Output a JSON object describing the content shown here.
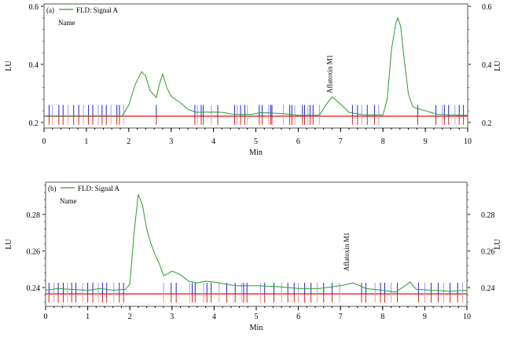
{
  "chart_data": [
    {
      "type": "line",
      "panel_label": "(a)",
      "legend": "FLD: Signal A",
      "legend_placement": "top-left",
      "name_label": "Name",
      "xlabel": "Min",
      "ylabel": "LU",
      "xlim": [
        0,
        10
      ],
      "ylim": [
        0.181,
        0.608
      ],
      "xticks": [
        0,
        1,
        2,
        3,
        4,
        5,
        6,
        7,
        8,
        9,
        10
      ],
      "yticks": [
        0.2,
        0.4,
        0.6
      ],
      "ytick_labels": [
        "0.2",
        "0.4",
        "0.6"
      ],
      "series_color": "#2e9a2e",
      "series": [
        {
          "name": "FLD: Signal A",
          "x": [
            0,
            0.5,
            1,
            1.5,
            1.85,
            2.0,
            2.15,
            2.3,
            2.4,
            2.5,
            2.65,
            2.72,
            2.8,
            2.9,
            3.0,
            3.2,
            3.4,
            3.6,
            4.0,
            4.2,
            4.5,
            4.9,
            5.1,
            5.3,
            5.6,
            6.0,
            6.5,
            6.65,
            6.8,
            6.95,
            7.2,
            7.5,
            8.0,
            8.1,
            8.2,
            8.3,
            8.35,
            8.42,
            8.5,
            8.6,
            8.7,
            8.8,
            8.9,
            9.1,
            9.3,
            9.6,
            10
          ],
          "y": [
            0.222,
            0.222,
            0.223,
            0.223,
            0.223,
            0.26,
            0.33,
            0.375,
            0.36,
            0.31,
            0.286,
            0.33,
            0.367,
            0.32,
            0.29,
            0.27,
            0.245,
            0.235,
            0.236,
            0.235,
            0.228,
            0.228,
            0.234,
            0.233,
            0.231,
            0.225,
            0.225,
            0.26,
            0.288,
            0.27,
            0.235,
            0.227,
            0.226,
            0.28,
            0.45,
            0.54,
            0.56,
            0.53,
            0.42,
            0.3,
            0.255,
            0.248,
            0.245,
            0.236,
            0.228,
            0.226,
            0.225
          ]
        }
      ],
      "baseline": 0.222,
      "annotation": {
        "text": "Aflatoxin M1",
        "x": 6.8
      },
      "event_marks": [
        0.12,
        0.2,
        0.35,
        0.45,
        0.57,
        0.7,
        0.82,
        0.93,
        1.05,
        1.15,
        1.28,
        1.37,
        1.47,
        1.58,
        1.72,
        1.78,
        1.88,
        2.65,
        3.56,
        3.62,
        3.71,
        3.76,
        3.95,
        4.1,
        4.5,
        4.56,
        4.64,
        4.74,
        4.8,
        5.08,
        5.15,
        5.3,
        5.35,
        5.38,
        5.65,
        5.8,
        5.85,
        5.92,
        6.1,
        6.15,
        6.23,
        6.28,
        6.35,
        6.5,
        7.28,
        7.4,
        7.5,
        7.63,
        7.8,
        7.9,
        8.82,
        9.25,
        9.4,
        9.45,
        9.55,
        9.7,
        9.8,
        9.9
      ]
    },
    {
      "type": "line",
      "panel_label": "(b)",
      "legend": "FLD: Signal A",
      "legend_placement": "top-left",
      "name_label": "Name",
      "xlabel": "Min",
      "ylabel": "LU",
      "xlim": [
        0,
        10
      ],
      "ylim": [
        0.2297,
        0.2976
      ],
      "xticks": [
        0,
        1,
        2,
        3,
        4,
        5,
        6,
        7,
        8,
        9,
        10
      ],
      "yticks": [
        0.24,
        0.26,
        0.28
      ],
      "ytick_labels": [
        "0.24",
        "0.26",
        "0.28"
      ],
      "series_color": "#2e9a2e",
      "series": [
        {
          "name": "FLD: Signal A",
          "x": [
            0,
            0.3,
            0.6,
            1.0,
            1.3,
            1.6,
            1.9,
            2.0,
            2.1,
            2.2,
            2.3,
            2.4,
            2.5,
            2.6,
            2.7,
            2.8,
            2.9,
            3.0,
            3.2,
            3.4,
            3.6,
            3.8,
            4.0,
            4.5,
            5.0,
            5.5,
            6.0,
            6.5,
            7.0,
            7.3,
            7.6,
            8.0,
            8.3,
            8.5,
            8.65,
            8.8,
            9.2,
            9.6,
            10
          ],
          "y": [
            0.2385,
            0.2395,
            0.239,
            0.2385,
            0.2395,
            0.2385,
            0.239,
            0.242,
            0.27,
            0.291,
            0.285,
            0.272,
            0.264,
            0.258,
            0.253,
            0.2465,
            0.2475,
            0.249,
            0.247,
            0.2435,
            0.2425,
            0.2435,
            0.243,
            0.241,
            0.241,
            0.2405,
            0.2395,
            0.2395,
            0.241,
            0.2425,
            0.2395,
            0.2385,
            0.2375,
            0.2405,
            0.243,
            0.239,
            0.2385,
            0.238,
            0.2385
          ]
        }
      ],
      "baseline": 0.2365,
      "annotation": {
        "text": "Aflatoxin M1",
        "x": 7.2
      },
      "event_marks": [
        0.08,
        0.2,
        0.3,
        0.42,
        0.52,
        0.62,
        0.72,
        0.88,
        1.0,
        1.12,
        1.25,
        1.35,
        1.45,
        1.62,
        1.75,
        1.85,
        2.8,
        2.98,
        3.1,
        3.42,
        3.48,
        3.55,
        3.75,
        3.83,
        3.93,
        4.12,
        4.3,
        4.5,
        4.65,
        4.7,
        4.78,
        5.1,
        5.2,
        5.42,
        5.6,
        5.75,
        5.9,
        6.0,
        6.15,
        6.3,
        6.45,
        6.6,
        6.8,
        6.98,
        7.5,
        7.6,
        7.82,
        7.95,
        8.05,
        8.2,
        8.35,
        8.85,
        9.0,
        9.15,
        9.32,
        9.45,
        9.6,
        9.78,
        9.9
      ]
    }
  ]
}
